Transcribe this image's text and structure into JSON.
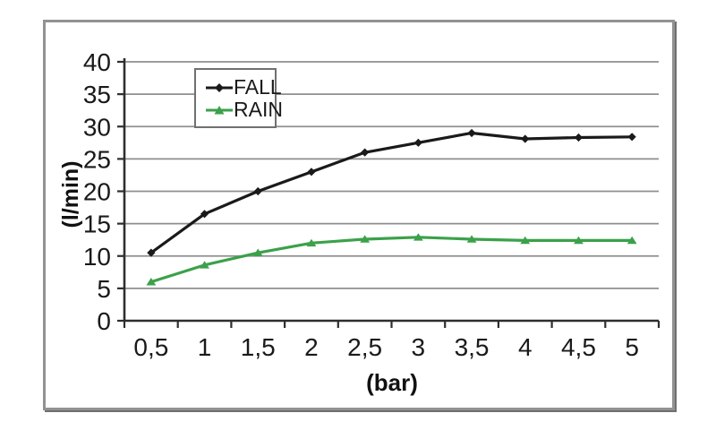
{
  "figure": {
    "background_color": "#ffffff",
    "frame_border_color": "#929292",
    "frame_shadow_color": "#6f6f6f"
  },
  "chart_data": {
    "type": "line",
    "title": "",
    "xlabel": "(bar)",
    "ylabel": "(l/min)",
    "categories": [
      "0,5",
      "1",
      "1,5",
      "2",
      "2,5",
      "3",
      "3,5",
      "4",
      "4,5",
      "5"
    ],
    "x_values": [
      0.5,
      1,
      1.5,
      2,
      2.5,
      3,
      3.5,
      4,
      4.5,
      5
    ],
    "series": [
      {
        "name": "FALL",
        "color": "#1a1a1a",
        "marker": "diamond",
        "values": [
          10.5,
          16.5,
          20,
          23,
          26,
          27.5,
          29,
          28.1,
          28.3,
          28.4
        ]
      },
      {
        "name": "RAIN",
        "color": "#3ba14a",
        "marker": "triangle",
        "values": [
          6,
          8.6,
          10.5,
          12,
          12.6,
          12.9,
          12.6,
          12.4,
          12.4,
          12.4
        ]
      }
    ],
    "ylim": [
      0,
      40
    ],
    "ytick_step": 5,
    "yticks": [
      "0",
      "5",
      "10",
      "15",
      "20",
      "25",
      "30",
      "35",
      "40"
    ],
    "grid": "horizontal",
    "gridline_color": "#8f8f8f",
    "axis_color": "#2e2e2e",
    "legend_position": "inside-top-center",
    "legend_border_color": "#707070"
  }
}
